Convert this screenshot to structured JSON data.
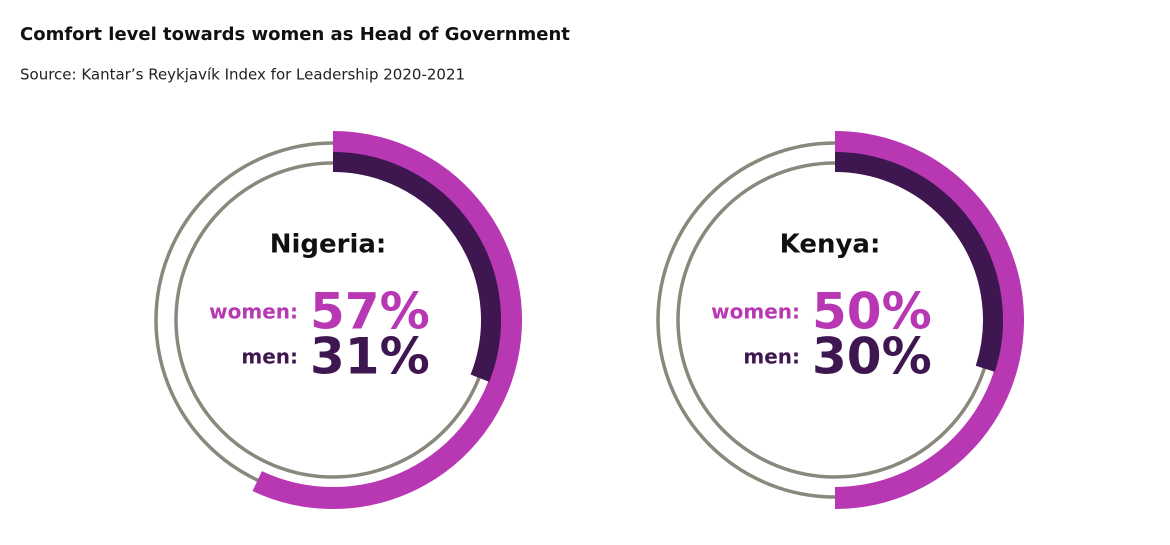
{
  "title": "Comfort level towards women as Head of Government",
  "subtitle": "Source: Kantar’s Reykjavík Index for Leadership 2020-2021",
  "chart_data": [
    {
      "type": "radial",
      "title": "Nigeria:",
      "ylim": [
        0,
        100
      ],
      "track_color": "#8a877c",
      "series": [
        {
          "name": "women:",
          "color": "#b837b3",
          "values": [
            57
          ],
          "value_labels": [
            "57%"
          ]
        },
        {
          "name": "men:",
          "color": "#3e1650",
          "values": [
            31
          ],
          "value_labels": [
            "31%"
          ]
        }
      ]
    },
    {
      "type": "radial",
      "title": "Kenya:",
      "ylim": [
        0,
        100
      ],
      "track_color": "#8a877c",
      "series": [
        {
          "name": "women:",
          "color": "#b837b3",
          "values": [
            50
          ],
          "value_labels": [
            "50%"
          ]
        },
        {
          "name": "men:",
          "color": "#3e1650",
          "values": [
            30
          ],
          "value_labels": [
            "30%"
          ]
        }
      ]
    }
  ]
}
